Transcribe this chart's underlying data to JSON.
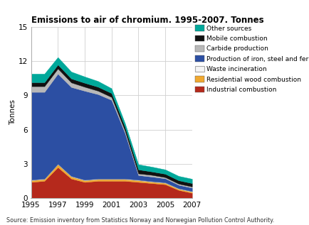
{
  "title": "Emissions to air of chromium. 1995-2007. Tonnes",
  "ylabel": "Tonnes",
  "source": "Source: Emission inventory from Statistics Norway and Norwegian Pollution Control Authority.",
  "years": [
    1995,
    1996,
    1997,
    1998,
    1999,
    2000,
    2001,
    2002,
    2003,
    2004,
    2005,
    2006,
    2007
  ],
  "series": {
    "Industrial combustion": {
      "color": "#b5291c",
      "data": [
        1.4,
        1.5,
        2.7,
        1.7,
        1.4,
        1.5,
        1.5,
        1.5,
        1.4,
        1.3,
        1.2,
        0.7,
        0.45
      ]
    },
    "Residential wood combustion": {
      "color": "#f0a830",
      "data": [
        0.15,
        0.15,
        0.25,
        0.18,
        0.15,
        0.15,
        0.15,
        0.15,
        0.15,
        0.12,
        0.12,
        0.1,
        0.1
      ]
    },
    "Waste incineration": {
      "color": "#f5f5f5",
      "data": [
        0.05,
        0.05,
        0.05,
        0.05,
        0.05,
        0.05,
        0.05,
        0.05,
        0.05,
        0.05,
        0.05,
        0.05,
        0.05
      ]
    },
    "Production of iron, steel and ferro-alloys": {
      "color": "#2c4fa3",
      "data": [
        7.7,
        7.6,
        7.9,
        7.8,
        7.8,
        7.4,
        6.9,
        4.0,
        0.4,
        0.4,
        0.35,
        0.3,
        0.3
      ]
    },
    "Carbide production": {
      "color": "#b8b8b8",
      "data": [
        0.5,
        0.5,
        0.45,
        0.4,
        0.35,
        0.3,
        0.25,
        0.2,
        0.15,
        0.15,
        0.1,
        0.1,
        0.1
      ]
    },
    "Mobile combustion": {
      "color": "#111111",
      "data": [
        0.35,
        0.35,
        0.35,
        0.35,
        0.35,
        0.35,
        0.35,
        0.35,
        0.35,
        0.3,
        0.3,
        0.3,
        0.3
      ]
    },
    "Other sources": {
      "color": "#00a89a",
      "data": [
        0.75,
        0.75,
        0.65,
        0.6,
        0.55,
        0.5,
        0.42,
        0.32,
        0.45,
        0.42,
        0.38,
        0.38,
        0.38
      ]
    }
  },
  "ylim": [
    0,
    15
  ],
  "yticks": [
    0,
    3,
    6,
    9,
    12,
    15
  ],
  "xticks": [
    1995,
    1997,
    1999,
    2001,
    2003,
    2005,
    2007
  ],
  "background_color": "#ffffff",
  "grid_color": "#d0d0d0",
  "legend_order": [
    "Other sources",
    "Mobile combustion",
    "Carbide production",
    "Production of iron, steel and ferro-alloys",
    "Waste incineration",
    "Residential wood combustion",
    "Industrial combustion"
  ]
}
